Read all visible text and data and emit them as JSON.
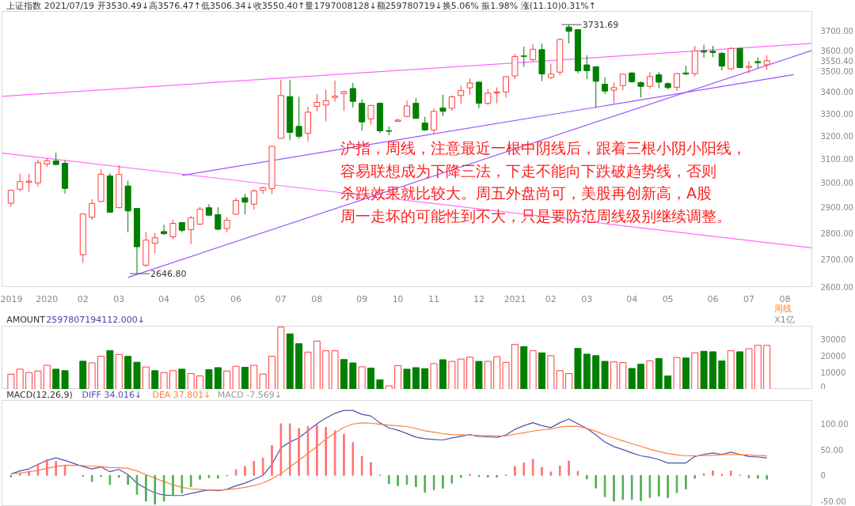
{
  "chart_data": [
    {
      "type": "candlestick",
      "title": "上证指数 2021/07/19 开3530.49↓高3576.47↑低3506.34↓收3550.40↑量1797008128↓额259780719↓换5.06% 振1.98% 涨(11.10)0.31%↑",
      "xlabel": "周线",
      "x": [
        "2019-12-09",
        "2019-12-16",
        "2019-12-23",
        "2019-12-30",
        "2020-01-06",
        "2020-01-13",
        "2020-01-20",
        "2020-02-03",
        "2020-02-10",
        "2020-02-17",
        "2020-02-24",
        "2020-03-02",
        "2020-03-09",
        "2020-03-16",
        "2020-03-23",
        "2020-03-30",
        "2020-04-06",
        "2020-04-13",
        "2020-04-20",
        "2020-04-27",
        "2020-05-04",
        "2020-05-11",
        "2020-05-18",
        "2020-05-25",
        "2020-06-01",
        "2020-06-08",
        "2020-06-15",
        "2020-06-22",
        "2020-06-29",
        "2020-07-06",
        "2020-07-13",
        "2020-07-20",
        "2020-07-27",
        "2020-08-03",
        "2020-08-10",
        "2020-08-17",
        "2020-08-24",
        "2020-08-31",
        "2020-09-07",
        "2020-09-14",
        "2020-09-21",
        "2020-09-28",
        "2020-10-05",
        "2020-10-12",
        "2020-10-19",
        "2020-10-26",
        "2020-11-02",
        "2020-11-09",
        "2020-11-16",
        "2020-11-23",
        "2020-11-30",
        "2020-12-07",
        "2020-12-14",
        "2020-12-21",
        "2020-12-28",
        "2021-01-04",
        "2021-01-11",
        "2021-01-18",
        "2021-01-25",
        "2021-02-01",
        "2021-02-08",
        "2021-02-15",
        "2021-02-22",
        "2021-03-01",
        "2021-03-08",
        "2021-03-15",
        "2021-03-22",
        "2021-03-29",
        "2021-04-05",
        "2021-04-12",
        "2021-04-19",
        "2021-04-26",
        "2021-05-03",
        "2021-05-10",
        "2021-05-17",
        "2021-05-24",
        "2021-05-31",
        "2021-06-07",
        "2021-06-14",
        "2021-06-21",
        "2021-06-28",
        "2021-07-05",
        "2021-07-12",
        "2021-07-19"
      ],
      "ohlc": [
        [
          2917,
          2972,
          2903,
          2969
        ],
        [
          2974,
          3039,
          2965,
          3005
        ],
        [
          3003,
          3037,
          2964,
          3007
        ],
        [
          3000,
          3098,
          2984,
          3084
        ],
        [
          3079,
          3104,
          3066,
          3093
        ],
        [
          3092,
          3127,
          3073,
          3077
        ],
        [
          3082,
          3095,
          2956,
          2977
        ],
        [
          2717,
          2876,
          2686,
          2874
        ],
        [
          2861,
          2933,
          2851,
          2916
        ],
        [
          2924,
          3057,
          2922,
          3036
        ],
        [
          3029,
          3040,
          2879,
          2881
        ],
        [
          2899,
          3074,
          2897,
          3035
        ],
        [
          2987,
          3009,
          2802,
          2886
        ],
        [
          2896,
          2898,
          2646.8,
          2747
        ],
        [
          2678,
          2804,
          2673,
          2772
        ],
        [
          2760,
          2800,
          2723,
          2781
        ],
        [
          2805,
          2832,
          2792,
          2797
        ],
        [
          2785,
          2851,
          2776,
          2837
        ],
        [
          2840,
          2842,
          2802,
          2810
        ],
        [
          2812,
          2866,
          2757,
          2859
        ],
        [
          2834,
          2901,
          2832,
          2893
        ],
        [
          2899,
          2913,
          2866,
          2869
        ],
        [
          2871,
          2901,
          2810,
          2814
        ],
        [
          2817,
          2861,
          2802,
          2849
        ],
        [
          2873,
          2939,
          2871,
          2928
        ],
        [
          2939,
          2955,
          2873,
          2921
        ],
        [
          2913,
          2974,
          2891,
          2967
        ],
        [
          2969,
          2984,
          2954,
          2980
        ],
        [
          2976,
          3155,
          2954,
          3155
        ],
        [
          3190,
          3459,
          3190,
          3384
        ],
        [
          3379,
          3459,
          3182,
          3216
        ],
        [
          3243,
          3379,
          3188,
          3199
        ],
        [
          3212,
          3332,
          3177,
          3307
        ],
        [
          3334,
          3391,
          3311,
          3352
        ],
        [
          3340,
          3411,
          3266,
          3360
        ],
        [
          3375,
          3455,
          3355,
          3381
        ],
        [
          3393,
          3407,
          3313,
          3402
        ],
        [
          3417,
          3443,
          3328,
          3357
        ],
        [
          3348,
          3367,
          3223,
          3263
        ],
        [
          3277,
          3340,
          3251,
          3338
        ],
        [
          3348,
          3352,
          3212,
          3223
        ],
        [
          3224,
          3243,
          3204,
          3221
        ],
        [
          3266,
          3277,
          3263,
          3271
        ],
        [
          3288,
          3361,
          3286,
          3336
        ],
        [
          3348,
          3372,
          3279,
          3279
        ],
        [
          3258,
          3286,
          3223,
          3227
        ],
        [
          3227,
          3325,
          3210,
          3311
        ],
        [
          3326,
          3387,
          3290,
          3311
        ],
        [
          3325,
          3384,
          3314,
          3378
        ],
        [
          3384,
          3431,
          3346,
          3407
        ],
        [
          3420,
          3465,
          3387,
          3443
        ],
        [
          3447,
          3450,
          3325,
          3348
        ],
        [
          3348,
          3414,
          3340,
          3395
        ],
        [
          3396,
          3422,
          3348,
          3401
        ],
        [
          3401,
          3477,
          3375,
          3473
        ],
        [
          3477,
          3584,
          3461,
          3571
        ],
        [
          3574,
          3620,
          3520,
          3572
        ],
        [
          3556,
          3633,
          3546,
          3607
        ],
        [
          3605,
          3635,
          3452,
          3486
        ],
        [
          3469,
          3533,
          3463,
          3485
        ],
        [
          3495,
          3662,
          3481,
          3656
        ],
        [
          3719,
          3731.69,
          3637,
          3698
        ],
        [
          3706,
          3708,
          3489,
          3501
        ],
        [
          3530,
          3577,
          3461,
          3502
        ],
        [
          3521,
          3523,
          3327,
          3451
        ],
        [
          3437,
          3470,
          3391,
          3405
        ],
        [
          3409,
          3445,
          3348,
          3421
        ],
        [
          3431,
          3487,
          3409,
          3485
        ],
        [
          3491,
          3495,
          3445,
          3449
        ],
        [
          3445,
          3451,
          3375,
          3427
        ],
        [
          3427,
          3495,
          3415,
          3474
        ],
        [
          3482,
          3495,
          3418,
          3447
        ],
        [
          3440,
          3447,
          3413,
          3421
        ],
        [
          3423,
          3491,
          3405,
          3488
        ],
        [
          3491,
          3527,
          3480,
          3486
        ],
        [
          3488,
          3624,
          3475,
          3599
        ],
        [
          3599,
          3630,
          3565,
          3593
        ],
        [
          3597,
          3624,
          3568,
          3591
        ],
        [
          3587,
          3594,
          3502,
          3524
        ],
        [
          3511,
          3617,
          3505,
          3611
        ],
        [
          3611,
          3614,
          3515,
          3517
        ],
        [
          3518,
          3549,
          3488,
          3523
        ],
        [
          3546,
          3568,
          3515,
          3541
        ],
        [
          3530.49,
          3576.47,
          3506.34,
          3550.4
        ]
      ],
      "colors": [
        "#ff3b3b",
        "#ff3b3b",
        "#ff3b3b",
        "#ff3b3b",
        "#ff3b3b",
        "#007f00",
        "#007f00",
        "#ff3b3b",
        "#ff3b3b",
        "#ff3b3b",
        "#007f00",
        "#ff3b3b",
        "#007f00",
        "#007f00",
        "#ff3b3b",
        "#ff3b3b",
        "#007f00",
        "#ff3b3b",
        "#007f00",
        "#ff3b3b",
        "#ff3b3b",
        "#007f00",
        "#007f00",
        "#ff3b3b",
        "#ff3b3b",
        "#007f00",
        "#ff3b3b",
        "#ff3b3b",
        "#ff3b3b",
        "#ff3b3b",
        "#007f00",
        "#007f00",
        "#ff3b3b",
        "#ff3b3b",
        "#ff3b3b",
        "#ff3b3b",
        "#ff3b3b",
        "#007f00",
        "#007f00",
        "#ff3b3b",
        "#007f00",
        "#007f00",
        "#ff3b3b",
        "#ff3b3b",
        "#007f00",
        "#007f00",
        "#ff3b3b",
        "#007f00",
        "#ff3b3b",
        "#ff3b3b",
        "#ff3b3b",
        "#007f00",
        "#ff3b3b",
        "#ff3b3b",
        "#ff3b3b",
        "#ff3b3b",
        "#007f00",
        "#ff3b3b",
        "#007f00",
        "#ff3b3b",
        "#ff3b3b",
        "#007f00",
        "#007f00",
        "#007f00",
        "#007f00",
        "#007f00",
        "#ff3b3b",
        "#ff3b3b",
        "#007f00",
        "#007f00",
        "#ff3b3b",
        "#007f00",
        "#007f00",
        "#ff3b3b",
        "#007f00",
        "#ff3b3b",
        "#007f00",
        "#007f00",
        "#007f00",
        "#ff3b3b",
        "#007f00",
        "#ff3b3b",
        "#007f00",
        "#ff3b3b"
      ],
      "series": [
        {
          "type": "line",
          "color": "#ff66ff",
          "x": [
            "2019-12-02",
            "2021-08-23"
          ],
          "values": [
            3380,
            3636
          ]
        },
        {
          "type": "line",
          "color": "#ff66ff",
          "x": [
            "2019-12-02",
            "2021-08-23"
          ],
          "values": [
            3126,
            2743
          ]
        },
        {
          "type": "line",
          "color": "#9955ff",
          "x": [
            "2020-03-09",
            "2021-08-23"
          ],
          "values": [
            2633,
            3601
          ]
        },
        {
          "type": "line",
          "color": "#9955ff",
          "x": [
            "2020-04-20",
            "2021-08-09"
          ],
          "values": [
            3031,
            3483
          ]
        }
      ],
      "annotations": [
        {
          "text": "3731.69",
          "x": "2021-02-15",
          "y": 3731.69
        },
        {
          "text": "2646.80",
          "x": "2020-03-16",
          "y": 2646.8
        },
        "沪指，周线，注意最近一根中阴线后，跟着三根小阴小阳线，",
        "容易联想成为下降三法，下走不能向下跌破趋势线，否则",
        "杀跌效果就比较大。周五外盘尚可，美股再创新高，A股",
        "周一走坏的可能性到不大，只是要防范周线级别继续调整。"
      ],
      "xlim": [
        "2019-12-02",
        "2021-08-23"
      ],
      "xticks": [
        {
          "value": "2019-12-09",
          "label": "2019"
        },
        {
          "value": "2020-01-06",
          "label": "2020"
        },
        {
          "value": "2020-02-03",
          "label": "02"
        },
        {
          "value": "2020-03-02",
          "label": "03"
        },
        {
          "value": "2020-04-06",
          "label": "04"
        },
        {
          "value": "2020-05-04",
          "label": "05"
        },
        {
          "value": "2020-06-01",
          "label": "06"
        },
        {
          "value": "2020-07-06",
          "label": "07"
        },
        {
          "value": "2020-08-03",
          "label": "08"
        },
        {
          "value": "2020-09-07",
          "label": "09"
        },
        {
          "value": "2020-10-05",
          "label": "10"
        },
        {
          "value": "2020-11-02",
          "label": "11"
        },
        {
          "value": "2020-12-07",
          "label": "12"
        },
        {
          "value": "2021-01-04",
          "label": "2021"
        },
        {
          "value": "2021-02-01",
          "label": "02"
        },
        {
          "value": "2021-03-01",
          "label": "03"
        },
        {
          "value": "2021-04-05",
          "label": "04"
        },
        {
          "value": "2021-05-03",
          "label": "05"
        },
        {
          "value": "2021-06-07",
          "label": "06"
        },
        {
          "value": "2021-07-05",
          "label": "07"
        },
        {
          "value": "2021-08-02",
          "label": "08"
        }
      ],
      "ylim": [
        2600,
        3800
      ],
      "log": true,
      "yticks": [
        {
          "value": 2600,
          "label": "2600.00"
        },
        {
          "value": 2700,
          "label": "2700.00"
        },
        {
          "value": 2800,
          "label": "2800.00"
        },
        {
          "value": 2900,
          "label": "2900.00"
        },
        {
          "value": 3000,
          "label": "3000.00"
        },
        {
          "value": 3100,
          "label": "3100.00"
        },
        {
          "value": 3200,
          "label": "3200.00"
        },
        {
          "value": 3300,
          "label": "3300.00"
        },
        {
          "value": 3400,
          "label": "3400.00"
        },
        {
          "value": 3500,
          "label": "3500.00"
        },
        {
          "value": 3550.4,
          "label": "3550.40"
        },
        {
          "value": 3600,
          "label": "3600.00"
        },
        {
          "value": 3700,
          "label": "3700.00"
        }
      ]
    },
    {
      "type": "bar",
      "title": "AMOUNT",
      "subtitle": "2597807194112.000↓",
      "ylabel": "X1亿",
      "tick_labels": "y",
      "x": [
        "2019-12-09",
        "2019-12-16",
        "2019-12-23",
        "2019-12-30",
        "2020-01-06",
        "2020-01-13",
        "2020-01-20",
        "2020-02-03",
        "2020-02-10",
        "2020-02-17",
        "2020-02-24",
        "2020-03-02",
        "2020-03-09",
        "2020-03-16",
        "2020-03-23",
        "2020-03-30",
        "2020-04-06",
        "2020-04-13",
        "2020-04-20",
        "2020-04-27",
        "2020-05-04",
        "2020-05-11",
        "2020-05-18",
        "2020-05-25",
        "2020-06-01",
        "2020-06-08",
        "2020-06-15",
        "2020-06-22",
        "2020-06-29",
        "2020-07-06",
        "2020-07-13",
        "2020-07-20",
        "2020-07-27",
        "2020-08-03",
        "2020-08-10",
        "2020-08-17",
        "2020-08-24",
        "2020-08-31",
        "2020-09-07",
        "2020-09-14",
        "2020-09-21",
        "2020-09-28",
        "2020-10-05",
        "2020-10-12",
        "2020-10-19",
        "2020-10-26",
        "2020-11-02",
        "2020-11-09",
        "2020-11-16",
        "2020-11-23",
        "2020-11-30",
        "2020-12-07",
        "2020-12-14",
        "2020-12-21",
        "2020-12-28",
        "2021-01-04",
        "2021-01-11",
        "2021-01-18",
        "2021-01-25",
        "2021-02-01",
        "2021-02-08",
        "2021-02-15",
        "2021-02-22",
        "2021-03-01",
        "2021-03-08",
        "2021-03-15",
        "2021-03-22",
        "2021-03-29",
        "2021-04-05",
        "2021-04-12",
        "2021-04-19",
        "2021-04-26",
        "2021-05-03",
        "2021-05-10",
        "2021-05-17",
        "2021-05-24",
        "2021-05-31",
        "2021-06-07",
        "2021-06-14",
        "2021-06-21",
        "2021-06-28",
        "2021-07-05",
        "2021-07-12",
        "2021-07-19"
      ],
      "values": [
        9000,
        12000,
        10000,
        10900,
        14300,
        12000,
        11100,
        16700,
        15700,
        19600,
        23000,
        20700,
        19600,
        16100,
        13300,
        11100,
        10000,
        11100,
        12000,
        9400,
        8000,
        11700,
        12900,
        10900,
        13700,
        13100,
        14300,
        9100,
        19600,
        36900,
        32900,
        27100,
        22100,
        28600,
        22900,
        22900,
        17700,
        15700,
        13400,
        12600,
        5700,
        2100,
        14100,
        12000,
        12900,
        12300,
        15300,
        17600,
        16600,
        18000,
        19100,
        16600,
        16600,
        19400,
        16000,
        26600,
        25400,
        22900,
        21700,
        20000,
        11100,
        9400,
        24300,
        20900,
        20000,
        16600,
        16300,
        15900,
        12400,
        14900,
        16900,
        18300,
        8000,
        18900,
        18600,
        21700,
        22600,
        22300,
        16900,
        22900,
        22300,
        24100,
        26100,
        26100
      ],
      "colors": [
        "#ff3b3b",
        "#ff3b3b",
        "#ff3b3b",
        "#ff3b3b",
        "#ff3b3b",
        "#007f00",
        "#007f00",
        "#007f00",
        "#ff3b3b",
        "#ff3b3b",
        "#007f00",
        "#ff3b3b",
        "#007f00",
        "#007f00",
        "#ff3b3b",
        "#007f00",
        "#ff3b3b",
        "#ff3b3b",
        "#007f00",
        "#ff3b3b",
        "#ff3b3b",
        "#007f00",
        "#007f00",
        "#ff3b3b",
        "#ff3b3b",
        "#007f00",
        "#ff3b3b",
        "#ff3b3b",
        "#ff3b3b",
        "#ff3b3b",
        "#007f00",
        "#007f00",
        "#ff3b3b",
        "#ff3b3b",
        "#ff3b3b",
        "#ff3b3b",
        "#007f00",
        "#007f00",
        "#ff3b3b",
        "#007f00",
        "#007f00",
        "#ff3b3b",
        "#ff3b3b",
        "#007f00",
        "#007f00",
        "#007f00",
        "#ff3b3b",
        "#007f00",
        "#ff3b3b",
        "#ff3b3b",
        "#ff3b3b",
        "#007f00",
        "#ff3b3b",
        "#ff3b3b",
        "#ff3b3b",
        "#ff3b3b",
        "#007f00",
        "#ff3b3b",
        "#007f00",
        "#ff3b3b",
        "#ff3b3b",
        "#ff3b3b",
        "#007f00",
        "#007f00",
        "#007f00",
        "#007f00",
        "#ff3b3b",
        "#ff3b3b",
        "#007f00",
        "#007f00",
        "#ff3b3b",
        "#007f00",
        "#007f00",
        "#ff3b3b",
        "#007f00",
        "#ff3b3b",
        "#007f00",
        "#007f00",
        "#007f00",
        "#ff3b3b",
        "#007f00",
        "#ff3b3b",
        "#ff3b3b",
        "#ff3b3b"
      ],
      "xlim": [
        "2019-12-02",
        "2021-08-23"
      ],
      "ylim": [
        0,
        37500
      ],
      "yticks": [
        0,
        10000,
        20000,
        30000
      ]
    },
    {
      "type": "line",
      "title": "MACD(12,26,9)",
      "tick_labels": "y",
      "x": [
        "2019-12-09",
        "2019-12-16",
        "2019-12-23",
        "2019-12-30",
        "2020-01-06",
        "2020-01-13",
        "2020-01-20",
        "2020-02-03",
        "2020-02-10",
        "2020-02-17",
        "2020-02-24",
        "2020-03-02",
        "2020-03-09",
        "2020-03-16",
        "2020-03-23",
        "2020-03-30",
        "2020-04-06",
        "2020-04-13",
        "2020-04-20",
        "2020-04-27",
        "2020-05-04",
        "2020-05-11",
        "2020-05-18",
        "2020-05-25",
        "2020-06-01",
        "2020-06-08",
        "2020-06-15",
        "2020-06-22",
        "2020-06-29",
        "2020-07-06",
        "2020-07-13",
        "2020-07-20",
        "2020-07-27",
        "2020-08-03",
        "2020-08-10",
        "2020-08-17",
        "2020-08-24",
        "2020-08-31",
        "2020-09-07",
        "2020-09-14",
        "2020-09-21",
        "2020-09-28",
        "2020-10-05",
        "2020-10-12",
        "2020-10-19",
        "2020-10-26",
        "2020-11-02",
        "2020-11-09",
        "2020-11-16",
        "2020-11-23",
        "2020-11-30",
        "2020-12-07",
        "2020-12-14",
        "2020-12-21",
        "2020-12-28",
        "2021-01-04",
        "2021-01-11",
        "2021-01-18",
        "2021-01-25",
        "2021-02-01",
        "2021-02-08",
        "2021-02-15",
        "2021-02-22",
        "2021-03-01",
        "2021-03-08",
        "2021-03-15",
        "2021-03-22",
        "2021-03-29",
        "2021-04-05",
        "2021-04-12",
        "2021-04-19",
        "2021-04-26",
        "2021-05-03",
        "2021-05-10",
        "2021-05-17",
        "2021-05-24",
        "2021-05-31",
        "2021-06-07",
        "2021-06-14",
        "2021-06-21",
        "2021-06-28",
        "2021-07-05",
        "2021-07-12",
        "2021-07-19"
      ],
      "series": [
        {
          "name": "DIFF 34.016↓",
          "type": "line",
          "color": "#5050b0",
          "values": [
            3,
            8.7,
            12.6,
            21,
            29,
            34,
            29,
            17,
            12.6,
            16.4,
            7,
            11.5,
            1.6,
            -14.8,
            -25.7,
            -34,
            -38,
            -39,
            -39,
            -35,
            -31,
            -28,
            -29.5,
            -27,
            -20,
            -15,
            -7.7,
            0,
            21,
            53.6,
            64.5,
            72.7,
            86,
            100,
            111,
            120,
            125.7,
            125.7,
            118,
            115,
            101.6,
            91.8,
            87.4,
            81,
            74,
            71,
            69.6,
            68.5,
            72.4,
            75.7,
            79,
            75,
            74.6,
            73.5,
            78,
            89,
            96.3,
            102,
            96.3,
            92.4,
            102,
            109,
            100,
            90.8,
            78.5,
            64.6,
            55.7,
            50,
            43.4,
            37.9,
            35,
            30.6,
            24,
            24,
            24,
            36.7,
            40.6,
            43.4,
            40.6,
            45,
            40.6,
            36.7,
            35.6,
            34.016
          ]
        },
        {
          "name": "DEA 37.801↓",
          "type": "line",
          "color": "#ff7f3f",
          "values": [
            3.3,
            4.4,
            7,
            9.8,
            13.7,
            17,
            19.7,
            19,
            18,
            17,
            15.3,
            14.8,
            13.7,
            8.7,
            1.6,
            -5.5,
            -12,
            -18.6,
            -23,
            -26,
            -27.3,
            -28.4,
            -28.4,
            -27.3,
            -25.7,
            -23,
            -19.7,
            -14.8,
            -6.6,
            3.3,
            16.4,
            29,
            42.6,
            56,
            70,
            82,
            93,
            99.5,
            101.6,
            101,
            99,
            97.3,
            96,
            94.5,
            90.7,
            86.3,
            83.5,
            80.7,
            79,
            78.5,
            78,
            77.4,
            76.8,
            76.3,
            76.8,
            79.6,
            82.4,
            85.7,
            88,
            89.6,
            93.5,
            95.2,
            94.7,
            90.8,
            85.2,
            78.5,
            72.4,
            66.8,
            61.2,
            56.2,
            50.7,
            46.2,
            42.3,
            39.5,
            37.9,
            37.9,
            38.4,
            39,
            40,
            40.6,
            40,
            39.5,
            38.4,
            37.801
          ]
        },
        {
          "name": "MACD -7.569↓",
          "type": "bar",
          "color": "#999999",
          "values": [
            -3,
            3,
            8,
            21.9,
            30.6,
            27,
            18,
            -1.6,
            -12,
            -2,
            -17.5,
            -3.8,
            -17.5,
            -36.6,
            -50,
            -55.7,
            -50,
            -39,
            -34,
            -21.9,
            -7.7,
            -4.4,
            -5.5,
            -1,
            11,
            17.5,
            27.3,
            33.9,
            58,
            100,
            100,
            90.7,
            94.5,
            97.3,
            93,
            86.3,
            79.8,
            63.4,
            37,
            25,
            1,
            -16.4,
            -20,
            -17.5,
            -22,
            -33,
            -27.8,
            -25,
            -15,
            -3.9,
            2.2,
            -2.2,
            -3.3,
            -3.3,
            1.1,
            17.3,
            24.5,
            31.2,
            15.6,
            6.7,
            18.4,
            27.8,
            7.8,
            -6.7,
            -24.5,
            -41.2,
            -50,
            -46.8,
            -46.8,
            -49,
            -42.9,
            -40,
            -42.9,
            -33.4,
            -26.2,
            -5.6,
            3.3,
            8.9,
            2.2,
            8.9,
            0.5,
            -4.5,
            -5.6,
            -7.569
          ],
          "colors": [
            "#4fae4f",
            "#ff7070",
            "#ff7070",
            "#ff7070",
            "#ff7070",
            "#ff7070",
            "#ff7070",
            "#4fae4f",
            "#4fae4f",
            "#4fae4f",
            "#4fae4f",
            "#4fae4f",
            "#4fae4f",
            "#4fae4f",
            "#4fae4f",
            "#4fae4f",
            "#4fae4f",
            "#4fae4f",
            "#4fae4f",
            "#4fae4f",
            "#4fae4f",
            "#4fae4f",
            "#4fae4f",
            "#4fae4f",
            "#ff7070",
            "#ff7070",
            "#ff7070",
            "#ff7070",
            "#ff7070",
            "#ff7070",
            "#ff7070",
            "#ff7070",
            "#ff7070",
            "#ff7070",
            "#ff7070",
            "#ff7070",
            "#ff7070",
            "#ff7070",
            "#ff7070",
            "#ff7070",
            "#ff7070",
            "#4fae4f",
            "#4fae4f",
            "#4fae4f",
            "#4fae4f",
            "#4fae4f",
            "#4fae4f",
            "#4fae4f",
            "#4fae4f",
            "#4fae4f",
            "#ff7070",
            "#4fae4f",
            "#4fae4f",
            "#4fae4f",
            "#ff7070",
            "#ff7070",
            "#ff7070",
            "#ff7070",
            "#ff7070",
            "#ff7070",
            "#ff7070",
            "#ff7070",
            "#ff7070",
            "#4fae4f",
            "#4fae4f",
            "#4fae4f",
            "#4fae4f",
            "#4fae4f",
            "#4fae4f",
            "#4fae4f",
            "#4fae4f",
            "#4fae4f",
            "#4fae4f",
            "#4fae4f",
            "#4fae4f",
            "#4fae4f",
            "#ff7070",
            "#ff7070",
            "#ff7070",
            "#ff7070",
            "#ff7070",
            "#4fae4f",
            "#4fae4f",
            "#4fae4f"
          ]
        }
      ],
      "xlim": [
        "2019-12-02",
        "2021-08-23"
      ],
      "ylim": [
        -60,
        145
      ],
      "yticks": [
        {
          "value": -50,
          "label": "-50.00"
        },
        0,
        {
          "value": 50,
          "label": "50.00"
        },
        {
          "value": 100,
          "label": "100.00"
        }
      ]
    }
  ]
}
